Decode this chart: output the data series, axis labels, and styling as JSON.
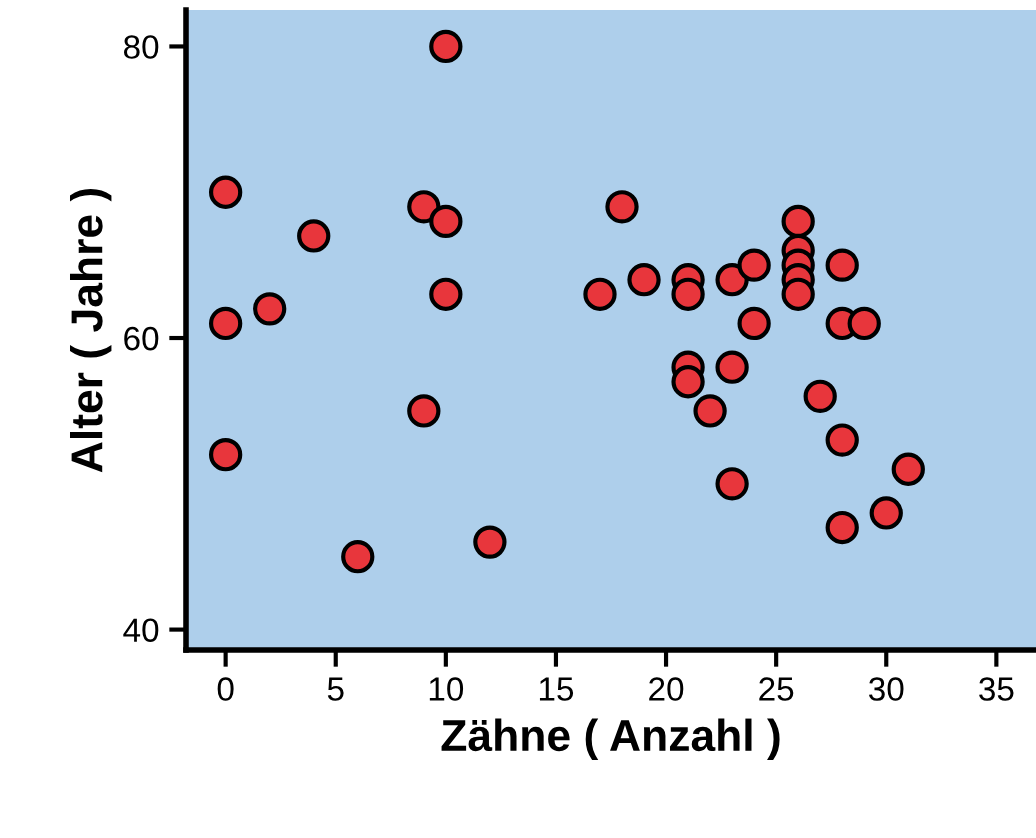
{
  "chart_data": {
    "type": "scatter",
    "xlabel": "Zähne ( Anzahl )",
    "ylabel": "Alter ( Jahre )",
    "x": [
      0,
      0,
      0,
      2,
      4,
      6,
      9,
      9,
      10,
      10,
      10,
      12,
      17,
      18,
      19,
      21,
      21,
      21,
      21,
      22,
      23,
      23,
      23,
      24,
      24,
      26,
      26,
      26,
      26,
      26,
      27,
      28,
      28,
      28,
      28,
      29,
      30,
      31
    ],
    "series": [
      {
        "color": "#e8363c",
        "values": [
          70,
          61,
          52,
          62,
          67,
          45,
          69,
          55,
          80,
          68,
          63,
          46,
          63,
          69,
          64,
          64,
          63,
          58,
          57,
          55,
          64,
          58,
          50,
          65,
          61,
          68,
          66,
          65,
          64,
          63,
          56,
          65,
          61,
          53,
          47,
          61,
          48,
          51
        ]
      }
    ],
    "xlim": [
      -1.8,
      36.8
    ],
    "ylim": [
      38.6,
      82.5
    ],
    "xticks": [
      0,
      5,
      10,
      15,
      20,
      25,
      30,
      35
    ],
    "yticks": [
      40,
      60,
      80
    ],
    "marker": "circle",
    "grid": false,
    "legend": false
  }
}
